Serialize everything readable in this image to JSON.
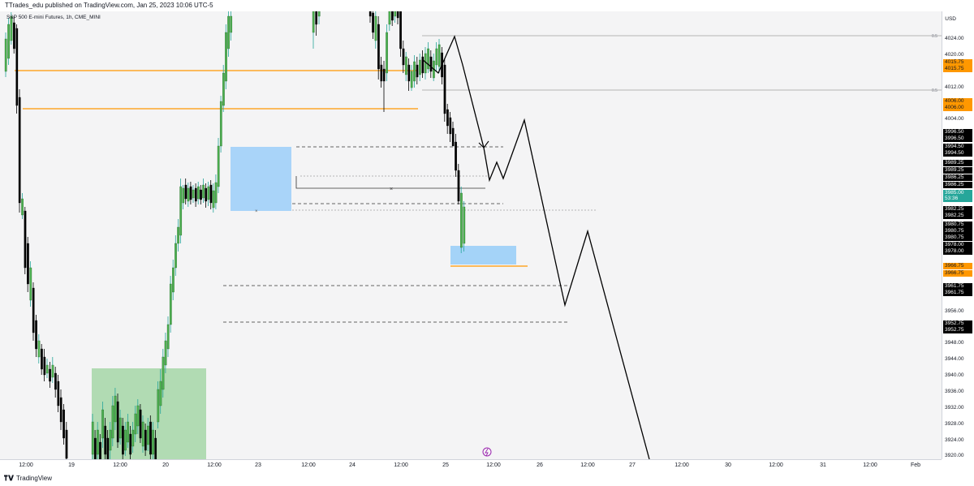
{
  "header": {
    "published": "TTrades_edu published on TradingView.com, Jan 25, 2023 10:06 UTC-5"
  },
  "symbol": {
    "title": "S&P 500 E-mini Futures, 1h, CME_MINI"
  },
  "footer": {
    "brand": "TradingView"
  },
  "price_axis": {
    "currency": "USD",
    "ticks": [
      "4024.00",
      "4020.00",
      "4012.00",
      "4004.00",
      "3956.00",
      "3948.00",
      "3944.00",
      "3940.00",
      "3936.00",
      "3932.00",
      "3928.00",
      "3924.00",
      "3920.00"
    ],
    "labels": [
      {
        "text": "4015.75",
        "style": "orange"
      },
      {
        "text": "4015.75",
        "style": "orange"
      },
      {
        "text": "4006.00",
        "style": "orange"
      },
      {
        "text": "4006.00",
        "style": "orange"
      },
      {
        "text": "3996.50",
        "style": "black"
      },
      {
        "text": "3996.50",
        "style": "black"
      },
      {
        "text": "3994.50",
        "style": "black"
      },
      {
        "text": "3994.50",
        "style": "black"
      },
      {
        "text": "3989.25",
        "style": "black"
      },
      {
        "text": "3989.25",
        "style": "black"
      },
      {
        "text": "3986.25",
        "style": "black"
      },
      {
        "text": "3986.25",
        "style": "black"
      },
      {
        "text": "3985.00",
        "style": "green"
      },
      {
        "text": "53:36",
        "style": "green"
      },
      {
        "text": "3982.25",
        "style": "black"
      },
      {
        "text": "3982.25",
        "style": "black"
      },
      {
        "text": "3980.75",
        "style": "black"
      },
      {
        "text": "3980.75",
        "style": "black"
      },
      {
        "text": "3980.75",
        "style": "black"
      },
      {
        "text": "3978.00",
        "style": "black"
      },
      {
        "text": "3978.00",
        "style": "black"
      },
      {
        "text": "3966.75",
        "style": "orange"
      },
      {
        "text": "3966.75",
        "style": "orange"
      },
      {
        "text": "3961.75",
        "style": "black"
      },
      {
        "text": "3961.75",
        "style": "black"
      },
      {
        "text": "3952.75",
        "style": "black"
      },
      {
        "text": "3952.75",
        "style": "black"
      }
    ],
    "scale_marks": [
      "0.5",
      "0.5"
    ]
  },
  "time_axis": {
    "labels": [
      "12:00",
      "19",
      "12:00",
      "20",
      "12:00",
      "23",
      "12:00",
      "24",
      "12:00",
      "25",
      "12:00",
      "26",
      "12:00",
      "27",
      "12:00",
      "30",
      "12:00",
      "31",
      "12:00",
      "Feb"
    ]
  },
  "colors": {
    "up": "#26a69a",
    "up_body": "#4caf50",
    "down": "#000000",
    "orange": "#ff9800",
    "blue_zone": "#90caf9",
    "green_zone": "#a5d6a7"
  },
  "icons": {
    "alert": "lightning-icon",
    "logo": "tradingview-logo-icon"
  }
}
